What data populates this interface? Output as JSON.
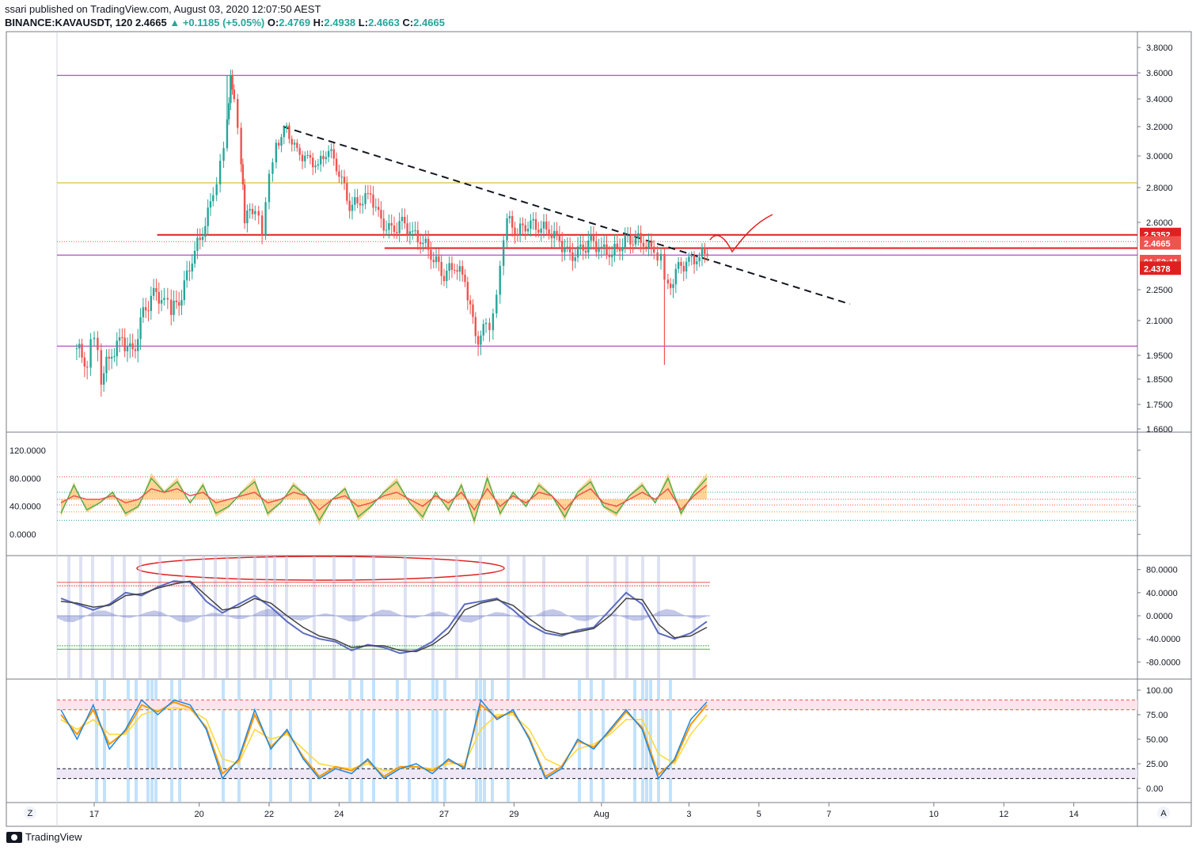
{
  "header": {
    "published": "ssari published on TradingView.com, August 03, 2020 12:07:50 AEST",
    "symbol": "BINANCE:KAVAUSDT, 120",
    "last": "2.4665",
    "change": "+0.1185 (+5.05%)",
    "open_label": "O:",
    "open": "2.4769",
    "high_label": "H:",
    "high": "2.4938",
    "low_label": "L:",
    "low": "2.4663",
    "close_label": "C:",
    "close": "2.4665"
  },
  "footer": {
    "brand": "TradingView"
  },
  "corner_labels": {
    "left": "Z",
    "right": "A"
  },
  "colors": {
    "up": "#26a69a",
    "down": "#ef5350",
    "price_line": "#e02020",
    "purple_line": "#9c27b0",
    "yellow_line": "#d4b200"
  },
  "chart_data": [
    {
      "type": "candlestick",
      "panel": "price",
      "y_ticks": [
        "3.8000",
        "3.6000",
        "3.4000",
        "3.2000",
        "3.0000",
        "2.8000",
        "2.6000",
        "2.2500",
        "2.1000",
        "1.9500",
        "1.8500",
        "1.7500",
        "1.6600"
      ],
      "x_ticks": [
        "17",
        "20",
        "22",
        "24",
        "27",
        "29",
        "Aug",
        "3",
        "5",
        "7",
        "10",
        "12",
        "14"
      ],
      "price_tags": [
        {
          "label": "2.5352",
          "value": 2.5352,
          "color": "#e02020"
        },
        {
          "label": "2.4665",
          "value": 2.4665,
          "color": "#ef5350"
        },
        {
          "label": "01:52:11",
          "value": 2.4378,
          "color": "#ef5350",
          "offset": 1
        },
        {
          "label": "2.4378",
          "value": 2.4378,
          "color": "#e02020",
          "offset": 2
        }
      ],
      "horizontal_lines": [
        {
          "value": 3.58,
          "color": "#9c27b0"
        },
        {
          "value": 2.83,
          "color": "#d4b200"
        },
        {
          "value": 2.43,
          "color": "#9c27b0"
        },
        {
          "value": 1.99,
          "color": "#9c27b0"
        }
      ],
      "resistance_lines": [
        {
          "value": 2.535,
          "from_day": 18.8,
          "color": "#e02020"
        },
        {
          "value": 2.466,
          "from_day": 25.3,
          "color": "#e02020"
        }
      ],
      "trendline": {
        "from": [
          22.4,
          3.2
        ],
        "to": [
          38.6,
          2.18
        ]
      },
      "close_path": [
        [
          16.5,
          1.98
        ],
        [
          16.8,
          1.92
        ],
        [
          17.0,
          2.06
        ],
        [
          17.2,
          1.86
        ],
        [
          17.5,
          1.96
        ],
        [
          17.8,
          2.02
        ],
        [
          18.1,
          1.95
        ],
        [
          18.4,
          2.13
        ],
        [
          18.7,
          2.23
        ],
        [
          19.0,
          2.2
        ],
        [
          19.2,
          2.14
        ],
        [
          19.5,
          2.23
        ],
        [
          19.8,
          2.42
        ],
        [
          20.1,
          2.55
        ],
        [
          20.4,
          2.76
        ],
        [
          20.6,
          2.95
        ],
        [
          20.8,
          3.22
        ],
        [
          20.9,
          3.55
        ],
        [
          21.0,
          3.38
        ],
        [
          21.2,
          2.95
        ],
        [
          21.3,
          2.62
        ],
        [
          21.6,
          2.7
        ],
        [
          21.8,
          2.56
        ],
        [
          22.0,
          2.9
        ],
        [
          22.2,
          3.08
        ],
        [
          22.5,
          3.18
        ],
        [
          22.8,
          3.02
        ],
        [
          23.1,
          2.98
        ],
        [
          23.4,
          2.94
        ],
        [
          23.7,
          3.05
        ],
        [
          24.0,
          2.9
        ],
        [
          24.3,
          2.7
        ],
        [
          24.6,
          2.72
        ],
        [
          24.9,
          2.76
        ],
        [
          25.2,
          2.6
        ],
        [
          25.5,
          2.55
        ],
        [
          25.8,
          2.6
        ],
        [
          26.1,
          2.54
        ],
        [
          26.4,
          2.5
        ],
        [
          26.7,
          2.42
        ],
        [
          27.0,
          2.33
        ],
        [
          27.3,
          2.38
        ],
        [
          27.6,
          2.3
        ],
        [
          27.9,
          2.02
        ],
        [
          28.2,
          2.06
        ],
        [
          28.4,
          2.1
        ],
        [
          28.6,
          2.35
        ],
        [
          28.8,
          2.62
        ],
        [
          29.1,
          2.55
        ],
        [
          29.4,
          2.6
        ],
        [
          29.7,
          2.58
        ],
        [
          30.0,
          2.56
        ],
        [
          30.3,
          2.5
        ],
        [
          30.6,
          2.42
        ],
        [
          30.9,
          2.45
        ],
        [
          31.2,
          2.5
        ],
        [
          31.5,
          2.46
        ],
        [
          31.8,
          2.44
        ],
        [
          32.1,
          2.5
        ],
        [
          32.4,
          2.52
        ],
        [
          32.7,
          2.5
        ],
        [
          33.0,
          2.45
        ],
        [
          33.2,
          2.42
        ],
        [
          33.4,
          2.25
        ],
        [
          33.7,
          2.36
        ],
        [
          34.0,
          2.4
        ],
        [
          34.3,
          2.42
        ],
        [
          34.6,
          2.47
        ]
      ]
    },
    {
      "type": "line",
      "panel": "oscillator_1",
      "y_ticks": [
        "120.0000",
        "80.0000",
        "40.0000",
        "0.0000"
      ],
      "series": [
        {
          "values": [
            30,
            70,
            35,
            45,
            60,
            30,
            40,
            80,
            60,
            75,
            45,
            70,
            30,
            40,
            60,
            75,
            30,
            45,
            70,
            55,
            20,
            50,
            65,
            25,
            40,
            60,
            75,
            45,
            25,
            60,
            35,
            70,
            20,
            80,
            30,
            60,
            40,
            70,
            55,
            25,
            60,
            75,
            40,
            30,
            55,
            70,
            45,
            80,
            30,
            60,
            80
          ]
        },
        {
          "values": [
            45,
            55,
            50,
            50,
            55,
            45,
            50,
            65,
            60,
            65,
            55,
            60,
            45,
            50,
            55,
            60,
            45,
            50,
            60,
            55,
            35,
            50,
            55,
            40,
            45,
            55,
            60,
            50,
            40,
            55,
            45,
            60,
            35,
            65,
            40,
            55,
            45,
            60,
            55,
            35,
            55,
            65,
            45,
            40,
            50,
            60,
            50,
            65,
            35,
            55,
            70
          ]
        }
      ]
    },
    {
      "type": "line",
      "panel": "oscillator_2",
      "y_ticks": [
        "80.0000",
        "40.0000",
        "0.0000",
        "-40.0000",
        "-80.0000"
      ],
      "series": [
        {
          "values": [
            30,
            20,
            10,
            20,
            40,
            35,
            50,
            60,
            58,
            25,
            5,
            20,
            35,
            15,
            -10,
            -30,
            -40,
            -45,
            -60,
            -50,
            -55,
            -65,
            -60,
            -45,
            -20,
            20,
            25,
            30,
            10,
            -15,
            -30,
            -35,
            -25,
            -20,
            10,
            40,
            20,
            -30,
            -40,
            -30,
            -10
          ]
        },
        {
          "values": [
            25,
            22,
            15,
            18,
            35,
            38,
            48,
            55,
            60,
            35,
            10,
            15,
            30,
            22,
            0,
            -20,
            -35,
            -42,
            -55,
            -52,
            -52,
            -60,
            -62,
            -50,
            -30,
            10,
            22,
            28,
            18,
            -5,
            -25,
            -32,
            -28,
            -22,
            0,
            30,
            28,
            -15,
            -38,
            -35,
            -20
          ]
        }
      ]
    },
    {
      "type": "line",
      "panel": "oscillator_3",
      "y_ticks": [
        "100.00",
        "75.00",
        "50.00",
        "25.00",
        "0.00"
      ],
      "series": [
        {
          "values": [
            80,
            50,
            85,
            40,
            60,
            90,
            75,
            90,
            85,
            60,
            10,
            30,
            80,
            40,
            60,
            30,
            10,
            20,
            15,
            30,
            10,
            20,
            25,
            15,
            30,
            20,
            90,
            70,
            80,
            50,
            10,
            20,
            50,
            40,
            60,
            80,
            60,
            10,
            30,
            70,
            88
          ]
        },
        {
          "values": [
            75,
            55,
            80,
            45,
            58,
            85,
            78,
            88,
            82,
            62,
            15,
            28,
            75,
            42,
            58,
            32,
            12,
            22,
            18,
            28,
            12,
            22,
            22,
            18,
            28,
            22,
            85,
            72,
            78,
            52,
            12,
            22,
            48,
            42,
            58,
            78,
            62,
            14,
            28,
            65,
            85
          ]
        },
        {
          "values": [
            70,
            60,
            70,
            55,
            55,
            75,
            80,
            82,
            80,
            70,
            30,
            25,
            60,
            50,
            55,
            40,
            25,
            22,
            20,
            25,
            18,
            20,
            22,
            20,
            25,
            25,
            60,
            75,
            75,
            60,
            30,
            22,
            40,
            45,
            55,
            70,
            70,
            35,
            25,
            55,
            75
          ]
        }
      ]
    }
  ]
}
